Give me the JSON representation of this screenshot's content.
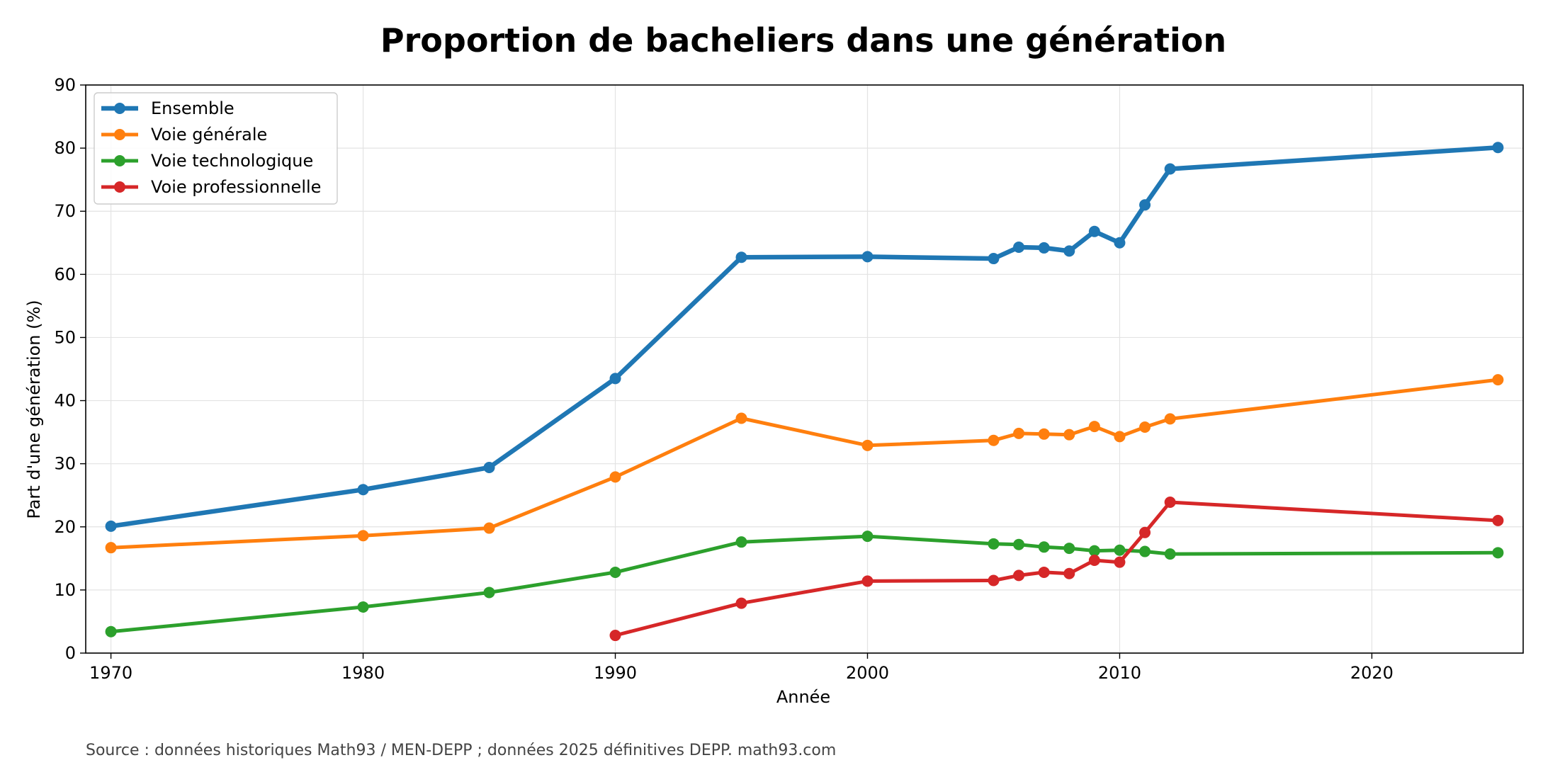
{
  "chart_data": {
    "type": "line",
    "title": "Proportion de bacheliers dans une génération",
    "xlabel": "Année",
    "ylabel": "Part d'une génération (%)",
    "xlim": [
      1969,
      2026
    ],
    "ylim": [
      0,
      90
    ],
    "xticks": [
      "1970",
      "1980",
      "1990",
      "2000",
      "2010",
      "2020"
    ],
    "yticks": [
      "0",
      "10",
      "20",
      "30",
      "40",
      "50",
      "60",
      "70",
      "80",
      "90"
    ],
    "grid": true,
    "legend_position": "top-left",
    "series": [
      {
        "name": "Ensemble",
        "color": "#1f77b4",
        "points": [
          [
            1970,
            20.1
          ],
          [
            1980,
            25.9
          ],
          [
            1985,
            29.4
          ],
          [
            1990,
            43.5
          ],
          [
            1995,
            62.7
          ],
          [
            2000,
            62.8
          ],
          [
            2005,
            62.5
          ],
          [
            2006,
            64.3
          ],
          [
            2007,
            64.2
          ],
          [
            2008,
            63.7
          ],
          [
            2009,
            66.8
          ],
          [
            2010,
            65.0
          ],
          [
            2011,
            71.0
          ],
          [
            2012,
            76.7
          ],
          [
            2025,
            80.1
          ]
        ]
      },
      {
        "name": "Voie générale",
        "color": "#ff7f0e",
        "points": [
          [
            1970,
            16.7
          ],
          [
            1980,
            18.6
          ],
          [
            1985,
            19.8
          ],
          [
            1990,
            27.9
          ],
          [
            1995,
            37.2
          ],
          [
            2000,
            32.9
          ],
          [
            2005,
            33.7
          ],
          [
            2006,
            34.8
          ],
          [
            2007,
            34.7
          ],
          [
            2008,
            34.6
          ],
          [
            2009,
            35.9
          ],
          [
            2010,
            34.3
          ],
          [
            2011,
            35.8
          ],
          [
            2012,
            37.1
          ],
          [
            2025,
            43.3
          ]
        ]
      },
      {
        "name": "Voie technologique",
        "color": "#2ca02c",
        "points": [
          [
            1970,
            3.4
          ],
          [
            1980,
            7.3
          ],
          [
            1985,
            9.6
          ],
          [
            1990,
            12.8
          ],
          [
            1995,
            17.6
          ],
          [
            2000,
            18.5
          ],
          [
            2005,
            17.3
          ],
          [
            2006,
            17.2
          ],
          [
            2007,
            16.8
          ],
          [
            2008,
            16.6
          ],
          [
            2009,
            16.2
          ],
          [
            2010,
            16.3
          ],
          [
            2011,
            16.1
          ],
          [
            2012,
            15.7
          ],
          [
            2025,
            15.9
          ]
        ]
      },
      {
        "name": "Voie professionnelle",
        "color": "#d62728",
        "points": [
          [
            1990,
            2.8
          ],
          [
            1995,
            7.9
          ],
          [
            2000,
            11.4
          ],
          [
            2005,
            11.5
          ],
          [
            2006,
            12.3
          ],
          [
            2007,
            12.8
          ],
          [
            2008,
            12.6
          ],
          [
            2009,
            14.7
          ],
          [
            2010,
            14.4
          ],
          [
            2011,
            19.1
          ],
          [
            2012,
            23.9
          ],
          [
            2025,
            21.0
          ]
        ]
      }
    ],
    "source": "Source : données historiques Math93 / MEN-DEPP ; données 2025 définitives DEPP. math93.com"
  }
}
